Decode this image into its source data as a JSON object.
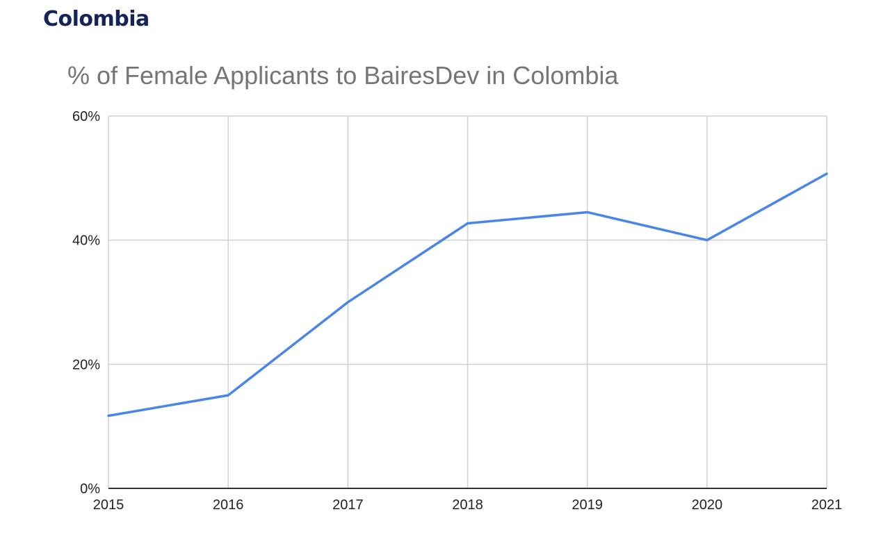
{
  "header": {
    "title": "Colombia"
  },
  "chart_data": {
    "type": "line",
    "title": "% of Female Applicants to BairesDev in Colombia",
    "xlabel": "",
    "ylabel": "",
    "categories": [
      "2015",
      "2016",
      "2017",
      "2018",
      "2019",
      "2020",
      "2021"
    ],
    "series": [
      {
        "values": [
          11.7,
          15.0,
          30.0,
          42.7,
          44.5,
          40.0,
          50.7
        ],
        "color": "#4a86e8"
      }
    ],
    "ylim": [
      0,
      60
    ],
    "yticks": [
      0,
      20,
      40,
      60
    ],
    "ytick_labels": [
      "0%",
      "20%",
      "40%",
      "60%"
    ],
    "grid": true,
    "legend": "none"
  }
}
